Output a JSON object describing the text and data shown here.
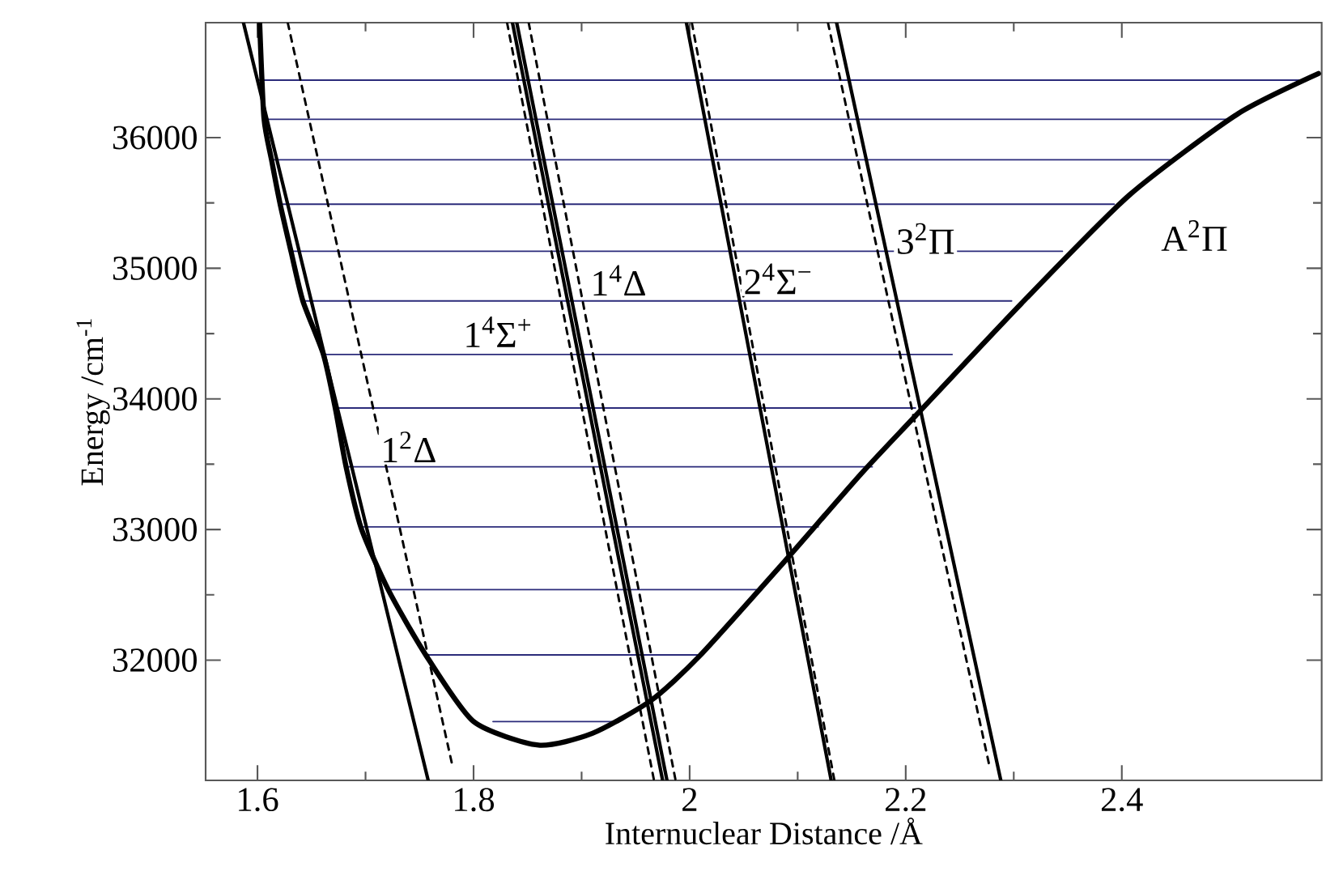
{
  "chart_data": {
    "type": "line",
    "xlabel": "Internuclear Distance /Å",
    "ylabel": "Energy /cm$^{-1}$",
    "xlim": [
      1.552,
      2.585
    ],
    "ylim": [
      31080,
      36880
    ],
    "xticks": [
      1.6,
      1.8,
      2,
      2.2,
      2.4
    ],
    "yticks": [
      32000,
      33000,
      34000,
      35000,
      36000
    ],
    "grid": false,
    "marker": "none",
    "series": [
      {
        "color": "#2b2b7a",
        "line_style": "solid",
        "x": [
          1.602,
          2.567
        ],
        "values": [
          36440,
          36440
        ]
      },
      {
        "color": "#2b2b7a",
        "line_style": "solid",
        "x": [
          1.606,
          2.497
        ],
        "values": [
          36140,
          36140
        ]
      },
      {
        "color": "#2b2b7a",
        "line_style": "solid",
        "x": [
          1.613,
          2.445
        ],
        "values": [
          35830,
          35830
        ]
      },
      {
        "color": "#2b2b7a",
        "line_style": "solid",
        "x": [
          1.621,
          2.393
        ],
        "values": [
          35490,
          35490
        ]
      },
      {
        "color": "#2b2b7a",
        "line_style": "solid",
        "x": [
          1.631,
          2.345
        ],
        "values": [
          35130,
          35130
        ]
      },
      {
        "color": "#2b2b7a",
        "line_style": "solid",
        "x": [
          1.642,
          2.298
        ],
        "values": [
          34750,
          34750
        ]
      },
      {
        "color": "#2b2b7a",
        "line_style": "solid",
        "x": [
          1.661,
          2.243
        ],
        "values": [
          34340,
          34340
        ]
      },
      {
        "color": "#2b2b7a",
        "line_style": "solid",
        "x": [
          1.672,
          2.209
        ],
        "values": [
          33930,
          33930
        ]
      },
      {
        "color": "#2b2b7a",
        "line_style": "solid",
        "x": [
          1.682,
          2.169
        ],
        "values": [
          33480,
          33480
        ]
      },
      {
        "color": "#2b2b7a",
        "line_style": "solid",
        "x": [
          1.696,
          2.119
        ],
        "values": [
          33020,
          33020
        ]
      },
      {
        "color": "#2b2b7a",
        "line_style": "solid",
        "x": [
          1.721,
          2.067
        ],
        "values": [
          32540,
          32540
        ]
      },
      {
        "color": "#2b2b7a",
        "line_style": "solid",
        "x": [
          1.755,
          2.009
        ],
        "values": [
          32040,
          32040
        ]
      },
      {
        "color": "#2b2b7a",
        "line_style": "solid",
        "x": [
          1.818,
          1.934
        ],
        "values": [
          31530,
          31530
        ]
      },
      {
        "color": "#000000",
        "line_style": "solid",
        "x": [
          1.587,
          1.758
        ],
        "values": [
          36880,
          31080
        ]
      },
      {
        "color": "#000000",
        "line_style": "dashed",
        "x": [
          1.628,
          1.781
        ],
        "values": [
          36880,
          31170
        ]
      },
      {
        "color": "#000000",
        "line_style": "dashed",
        "x": [
          1.831,
          1.967
        ],
        "values": [
          36880,
          31080
        ]
      },
      {
        "color": "#000000",
        "line_style": "solid",
        "x": [
          1.836,
          1.975
        ],
        "values": [
          36880,
          31080
        ]
      },
      {
        "color": "#000000",
        "line_style": "solid",
        "x": [
          1.84,
          1.979
        ],
        "values": [
          36880,
          31080
        ]
      },
      {
        "color": "#000000",
        "line_style": "dashed",
        "x": [
          1.851,
          1.987
        ],
        "values": [
          36880,
          31080
        ]
      },
      {
        "color": "#000000",
        "line_style": "solid",
        "x": [
          1.997,
          2.131
        ],
        "values": [
          36880,
          31080
        ]
      },
      {
        "color": "#000000",
        "line_style": "dashed",
        "x": [
          2.002,
          2.134
        ],
        "values": [
          36880,
          31080
        ]
      },
      {
        "color": "#000000",
        "line_style": "dashed",
        "x": [
          2.128,
          2.278
        ],
        "values": [
          36880,
          31170
        ]
      },
      {
        "color": "#000000",
        "line_style": "solid",
        "x": [
          2.136,
          2.288
        ],
        "values": [
          36880,
          31080
        ]
      },
      {
        "color": "#000000",
        "line_style": "solid",
        "x": [
          1.602,
          1.606,
          1.613,
          1.621,
          1.631,
          1.642,
          1.661,
          1.672,
          1.682,
          1.696,
          1.721,
          1.755,
          1.8,
          1.86,
          1.91,
          1.964,
          2.009,
          2.084,
          2.158,
          2.209,
          2.307,
          2.407,
          2.507,
          2.582
        ],
        "values": [
          36880,
          36150,
          35830,
          35490,
          35130,
          34750,
          34340,
          33930,
          33480,
          33010,
          32540,
          32050,
          31530,
          31350,
          31440,
          31690,
          32030,
          32720,
          33420,
          33870,
          34730,
          35560,
          36180,
          36490
        ]
      }
    ],
    "annotations": [
      "1$^{2}$Δ",
      "1$^{4}$Σ$^{+}$",
      "1$^{4}$Δ",
      "2$^{4}$Σ$^{−}$",
      "3$^{2}$Π",
      "A$^{2}$Π"
    ]
  }
}
